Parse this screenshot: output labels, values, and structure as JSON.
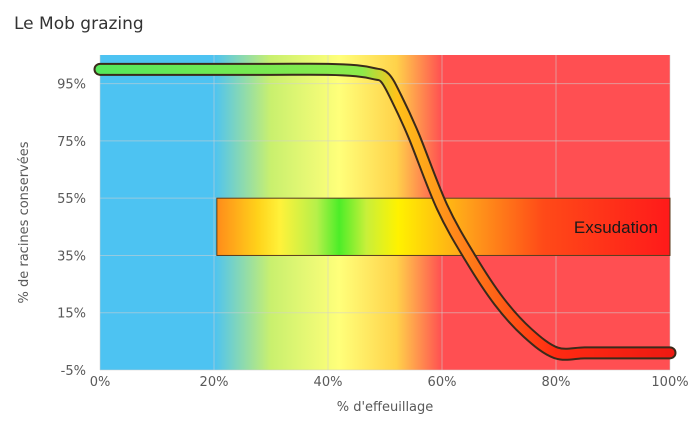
{
  "chart_data": {
    "type": "line",
    "title": "Le Mob grazing",
    "xlabel": "% d'effeuillage",
    "ylabel": "% de racines conservées",
    "x_ticks": [
      "0%",
      "20%",
      "40%",
      "60%",
      "80%",
      "100%"
    ],
    "y_ticks": [
      "95%",
      "75%",
      "55%",
      "35%",
      "15%",
      "-5%"
    ],
    "xlim": [
      0,
      100
    ],
    "ylim": [
      -5,
      105
    ],
    "grid": true,
    "legend": "none",
    "background_zones": [
      {
        "from": 0,
        "to": 20,
        "color": "#4dc3f2"
      },
      {
        "from": 20,
        "to": 60,
        "color_stops": [
          "#4dc3f2",
          "#c9f06e",
          "#ffff7a",
          "#ffd24a",
          "#ff8a3c"
        ]
      },
      {
        "from": 60,
        "to": 100,
        "color": "#ff4f52"
      }
    ],
    "series": [
      {
        "x": [
          0,
          10,
          20,
          30,
          40,
          45,
          48,
          50,
          52,
          55,
          60,
          65,
          70,
          75,
          80,
          85,
          90,
          95,
          100
        ],
        "y": [
          100,
          100,
          100,
          100,
          100,
          99.5,
          98.5,
          97,
          90,
          77,
          52,
          34,
          19,
          8,
          1,
          1,
          1,
          1,
          1
        ]
      }
    ],
    "annotations": [
      {
        "text": "Exsudation",
        "x_from": 20.5,
        "x_to": 100,
        "y_from": 35,
        "y_to": 55
      }
    ]
  }
}
